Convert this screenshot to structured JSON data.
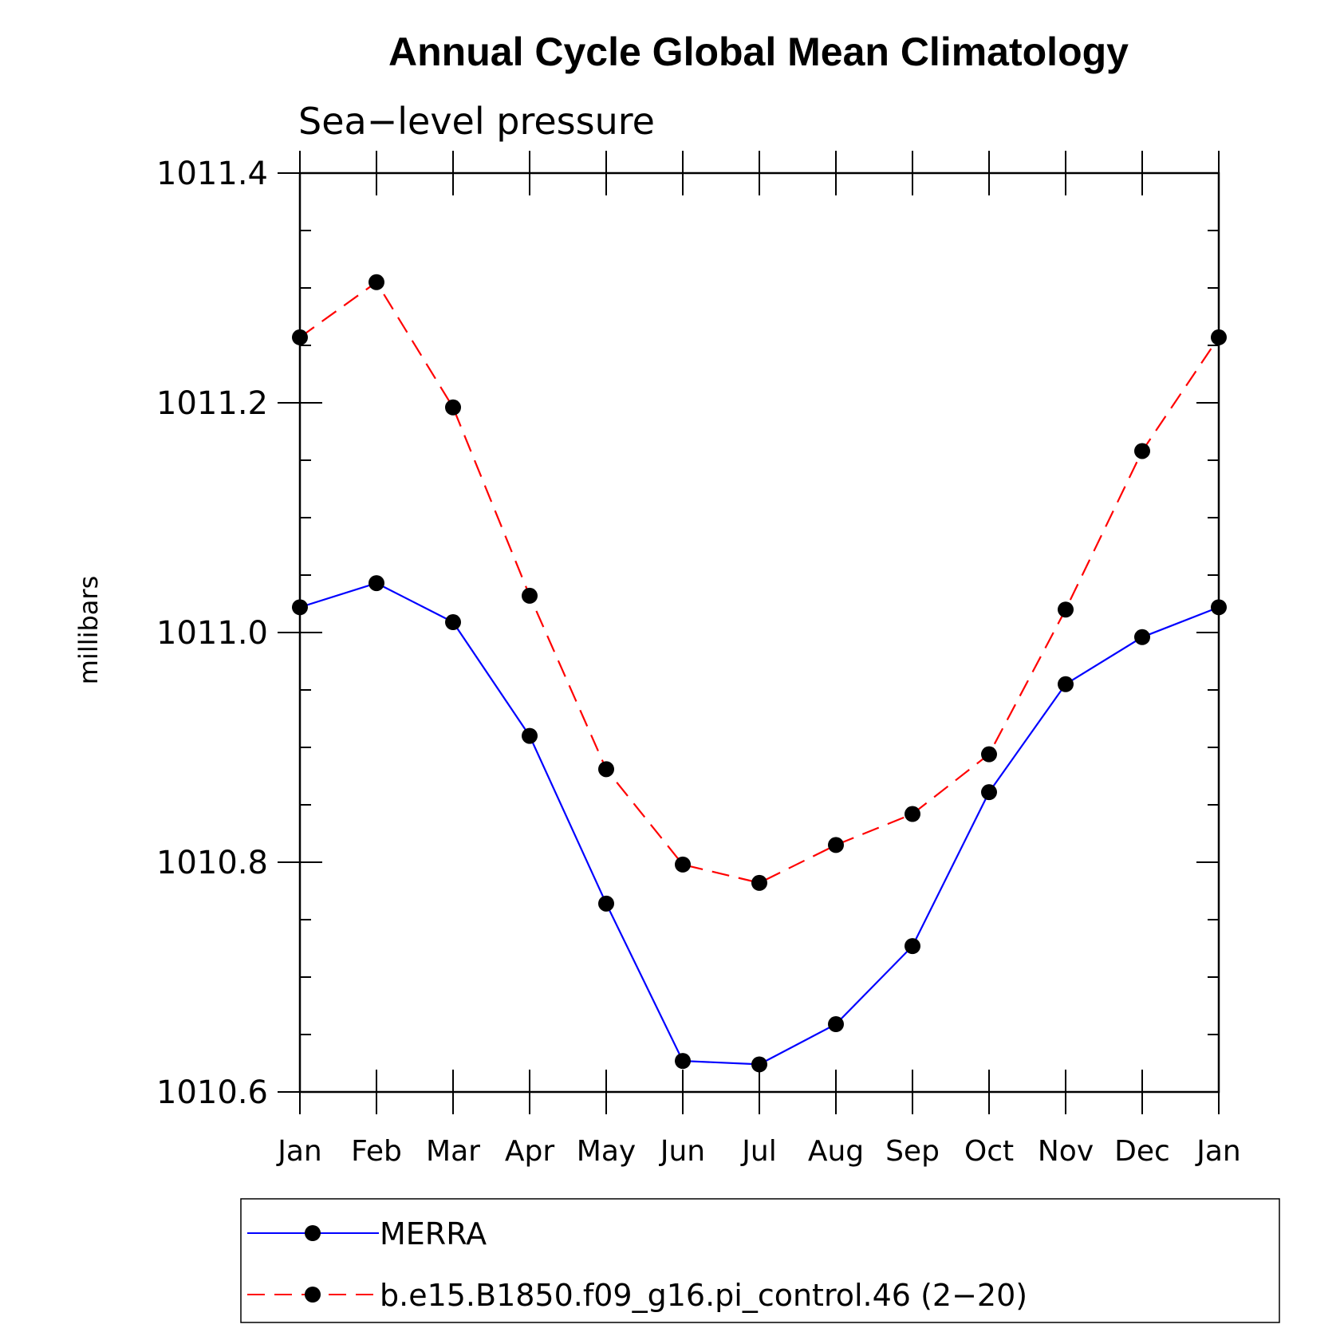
{
  "chart_data": {
    "type": "line",
    "title": "Annual Cycle Global Mean Climatology",
    "subtitle": "Sea−level pressure",
    "xlabel": "",
    "ylabel": "millibars",
    "categories": [
      "Jan",
      "Feb",
      "Mar",
      "Apr",
      "May",
      "Jun",
      "Jul",
      "Aug",
      "Sep",
      "Oct",
      "Nov",
      "Dec",
      "Jan"
    ],
    "ylim": [
      1010.6,
      1011.4
    ],
    "yticks": [
      1010.6,
      1010.8,
      1011.0,
      1011.2,
      1011.4
    ],
    "ytick_labels": [
      "1010.6",
      "1010.8",
      "1011.0",
      "1011.2",
      "1011.4"
    ],
    "minor_tick_step": 0.05,
    "grid": false,
    "legend_position": "bottom",
    "series": [
      {
        "name": "MERRA",
        "color": "#0000ff",
        "line_style": "solid",
        "marker": "filled-circle",
        "values": [
          1011.022,
          1011.043,
          1011.009,
          1010.91,
          1010.764,
          1010.627,
          1010.624,
          1010.659,
          1010.727,
          1010.861,
          1010.955,
          1010.996,
          1011.022
        ]
      },
      {
        "name": "b.e15.B1850.f09_g16.pi_control.46 (2−20)",
        "color": "#ff0000",
        "line_style": "dashed",
        "marker": "filled-circle",
        "values": [
          1011.257,
          1011.305,
          1011.196,
          1011.032,
          1010.881,
          1010.798,
          1010.782,
          1010.815,
          1010.842,
          1010.894,
          1011.02,
          1011.158,
          1011.257
        ]
      }
    ]
  }
}
